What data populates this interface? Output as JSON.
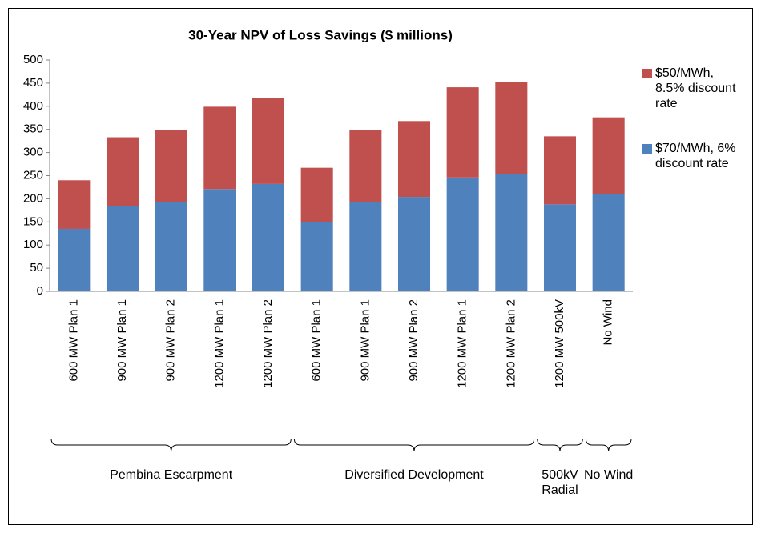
{
  "chart_data": {
    "type": "stacked_bar",
    "title": "30-Year NPV of Loss Savings ($ millions)",
    "categories": [
      "600 MW Plan 1",
      "900 MW Plan 1",
      "900 MW Plan 2",
      "1200 MW Plan 1",
      "1200 MW Plan 2",
      "600 MW Plan 1",
      "900 MW Plan 1",
      "900 MW Plan 2",
      "1200 MW Plan 1",
      "1200 MW Plan 2",
      "1200 MW 500kV",
      "No Wind"
    ],
    "groups": [
      "Pembina Escarpment",
      "Pembina Escarpment",
      "Pembina Escarpment",
      "Pembina Escarpment",
      "Pembina Escarpment",
      "Diversified Development",
      "Diversified Development",
      "Diversified Development",
      "Diversified Development",
      "Diversified Development",
      "500kV Radial",
      "No Wind"
    ],
    "series": [
      {
        "name": "$70/MWh, 6% discount rate",
        "color": "#4f81bd",
        "values": [
          135,
          185,
          193,
          221,
          232,
          150,
          193,
          204,
          246,
          253,
          188,
          210
        ]
      },
      {
        "name": "$50/MWh, 8.5% discount rate",
        "color": "#c0504d",
        "values": [
          105,
          148,
          155,
          178,
          185,
          117,
          155,
          164,
          195,
          199,
          147,
          166
        ]
      }
    ],
    "ylim": [
      0,
      500
    ],
    "yticks": [
      0,
      50,
      100,
      150,
      200,
      250,
      300,
      350,
      400,
      450,
      500
    ],
    "grid": false,
    "legend": "right"
  }
}
